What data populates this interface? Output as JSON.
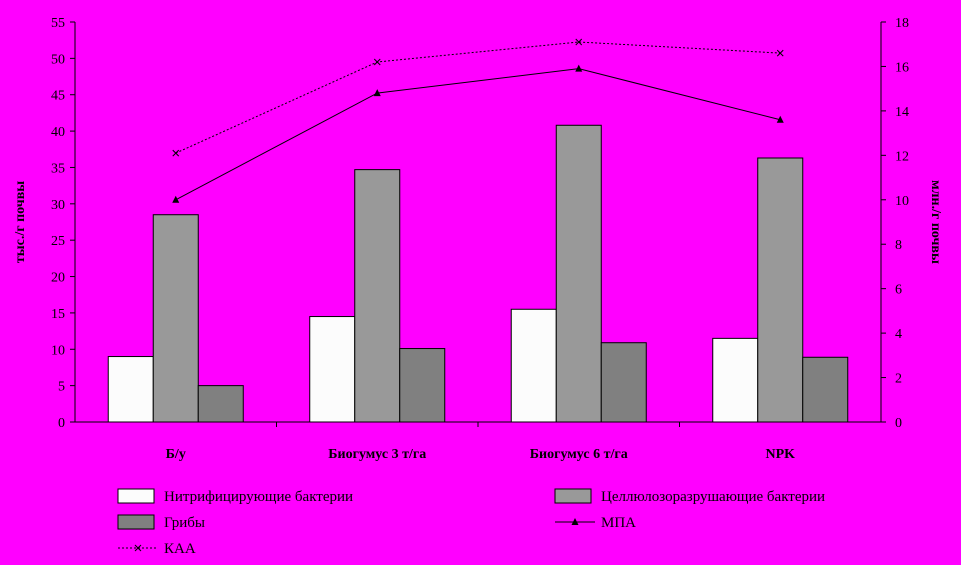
{
  "chart_data": {
    "type": "bar",
    "categories": [
      "Б/у",
      "Биогумус 3 т/га",
      "Биогумус 6 т/га",
      "NPK"
    ],
    "series": [
      {
        "name": "Нитрифицирующие бактерии",
        "kind": "bar",
        "axis": "left",
        "color": "#fcfcfc",
        "values": [
          9,
          14.5,
          15.5,
          11.5
        ]
      },
      {
        "name": "Целлюлозоразрушающие бактерии",
        "kind": "bar",
        "axis": "left",
        "color": "#999999",
        "values": [
          28.5,
          34.7,
          40.8,
          36.3
        ]
      },
      {
        "name": "Грибы",
        "kind": "bar",
        "axis": "left",
        "color": "#808080",
        "values": [
          5,
          10.1,
          10.9,
          8.9
        ]
      },
      {
        "name": "МПА",
        "kind": "line",
        "axis": "right",
        "color": "#000000",
        "marker": "triangle",
        "values": [
          10,
          14.8,
          15.9,
          13.6
        ]
      },
      {
        "name": "КАА",
        "kind": "line",
        "axis": "right",
        "color": "#000000",
        "marker": "x",
        "dashed": true,
        "values": [
          12.1,
          16.2,
          17.1,
          16.6
        ]
      }
    ],
    "ylabel": "тыс./г почвы",
    "y2label": "млн./г почвы",
    "ylim": [
      0,
      55
    ],
    "y2lim": [
      0,
      18
    ],
    "yticks": [
      0,
      5,
      10,
      15,
      20,
      25,
      30,
      35,
      40,
      45,
      50,
      55
    ],
    "y2ticks": [
      0,
      2,
      4,
      6,
      8,
      10,
      12,
      14,
      16,
      18
    ],
    "grid": false,
    "legend_position": "bottom"
  }
}
